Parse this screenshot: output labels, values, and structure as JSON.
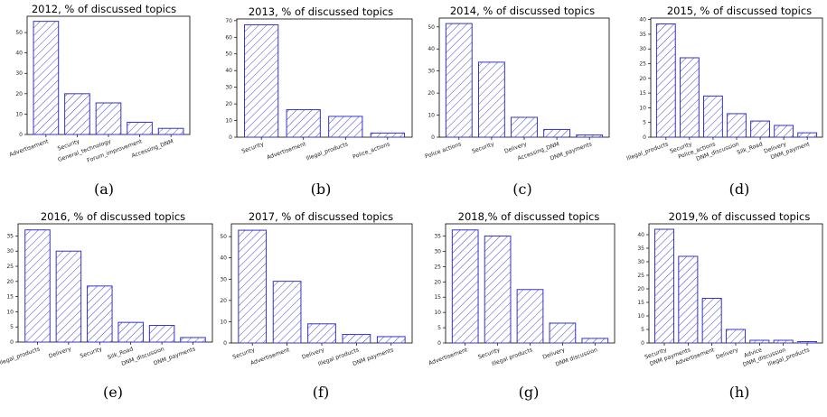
{
  "chart_data": [
    {
      "type": "bar",
      "title": "2012, % of discussed topics",
      "caption": "(a)",
      "categories": [
        "Advertisement",
        "Security",
        "General_technology",
        "Forum_improvement",
        "Accessing_DNM"
      ],
      "values": [
        55.5,
        20,
        15.5,
        6,
        3
      ],
      "ylim": [
        0,
        58
      ],
      "yticks": [
        0,
        10,
        20,
        30,
        40,
        50
      ],
      "bar_color": "#3333cc"
    },
    {
      "type": "bar",
      "title": "2013, % of discussed topics",
      "caption": "(b)",
      "categories": [
        "Security",
        "Advertisement",
        "Illegal_products",
        "Police_actions"
      ],
      "values": [
        67.5,
        16.5,
        12.5,
        2.5
      ],
      "ylim": [
        0,
        71
      ],
      "yticks": [
        0,
        10,
        20,
        30,
        40,
        50,
        60,
        70
      ],
      "bar_color": "#3333cc"
    },
    {
      "type": "bar",
      "title": "2014,  % of discussed topics",
      "caption": "(c)",
      "categories": [
        "Police actions",
        "Security",
        "Delivery",
        "Accessing_DNM",
        "DNM_payments"
      ],
      "values": [
        51.5,
        34,
        9,
        3.5,
        1
      ],
      "ylim": [
        0,
        54
      ],
      "yticks": [
        0,
        10,
        20,
        30,
        40,
        50
      ],
      "bar_color": "#3333cc"
    },
    {
      "type": "bar",
      "title": "2015,  % of discussed topics",
      "caption": "(d)",
      "categories": [
        "Illegal_products",
        "Security",
        "Police_actions",
        "DNM_discussion",
        "Silk_Road",
        "Delivery",
        "DNM_payment"
      ],
      "values": [
        38.5,
        27,
        14,
        8,
        5.5,
        4,
        1.5
      ],
      "ylim": [
        0,
        40.5
      ],
      "yticks": [
        0,
        5,
        10,
        15,
        20,
        25,
        30,
        35,
        40
      ],
      "bar_color": "#3333cc"
    },
    {
      "type": "bar",
      "title": "2016,  % of discussed topics",
      "caption": "(e)",
      "categories": [
        "Illegal_products",
        "Delivery",
        "Security",
        "Silk_Road",
        "DNM_discussion",
        "DNM_payments"
      ],
      "values": [
        37,
        30,
        18.5,
        6.5,
        5.5,
        1.5
      ],
      "ylim": [
        0,
        39
      ],
      "yticks": [
        0,
        5,
        10,
        15,
        20,
        25,
        30,
        35
      ],
      "bar_color": "#3333cc"
    },
    {
      "type": "bar",
      "title": "2017,  % of discussed topics",
      "caption": "(f)",
      "categories": [
        "Security",
        "Advertisement",
        "Delivery",
        "Illegal products",
        "DNM payments"
      ],
      "values": [
        53,
        29,
        9,
        4,
        3
      ],
      "ylim": [
        0,
        56
      ],
      "yticks": [
        0,
        10,
        20,
        30,
        40,
        50
      ],
      "bar_color": "#3333cc"
    },
    {
      "type": "bar",
      "title": "2018,% of discussed topics",
      "caption": "(g)",
      "categories": [
        "Advertisement",
        "Security",
        "Illegal products",
        "Delivery",
        "DNM discussion"
      ],
      "values": [
        37,
        35,
        17.5,
        6.5,
        1.5
      ],
      "ylim": [
        0,
        39
      ],
      "yticks": [
        0,
        5,
        10,
        15,
        20,
        25,
        30,
        35
      ],
      "bar_color": "#3333cc"
    },
    {
      "type": "bar",
      "title": "2019,% of discussed topics",
      "caption": "(h)",
      "categories": [
        "Security",
        "DNM payments",
        "Advertisement",
        "Delivery",
        "Advice",
        "DNM_discussion",
        "Illegal_products"
      ],
      "values": [
        42,
        32,
        16.5,
        5,
        1,
        1,
        0.5
      ],
      "ylim": [
        0,
        44
      ],
      "yticks": [
        0,
        5,
        10,
        15,
        20,
        25,
        30,
        35,
        40
      ],
      "bar_color": "#3333cc"
    }
  ]
}
